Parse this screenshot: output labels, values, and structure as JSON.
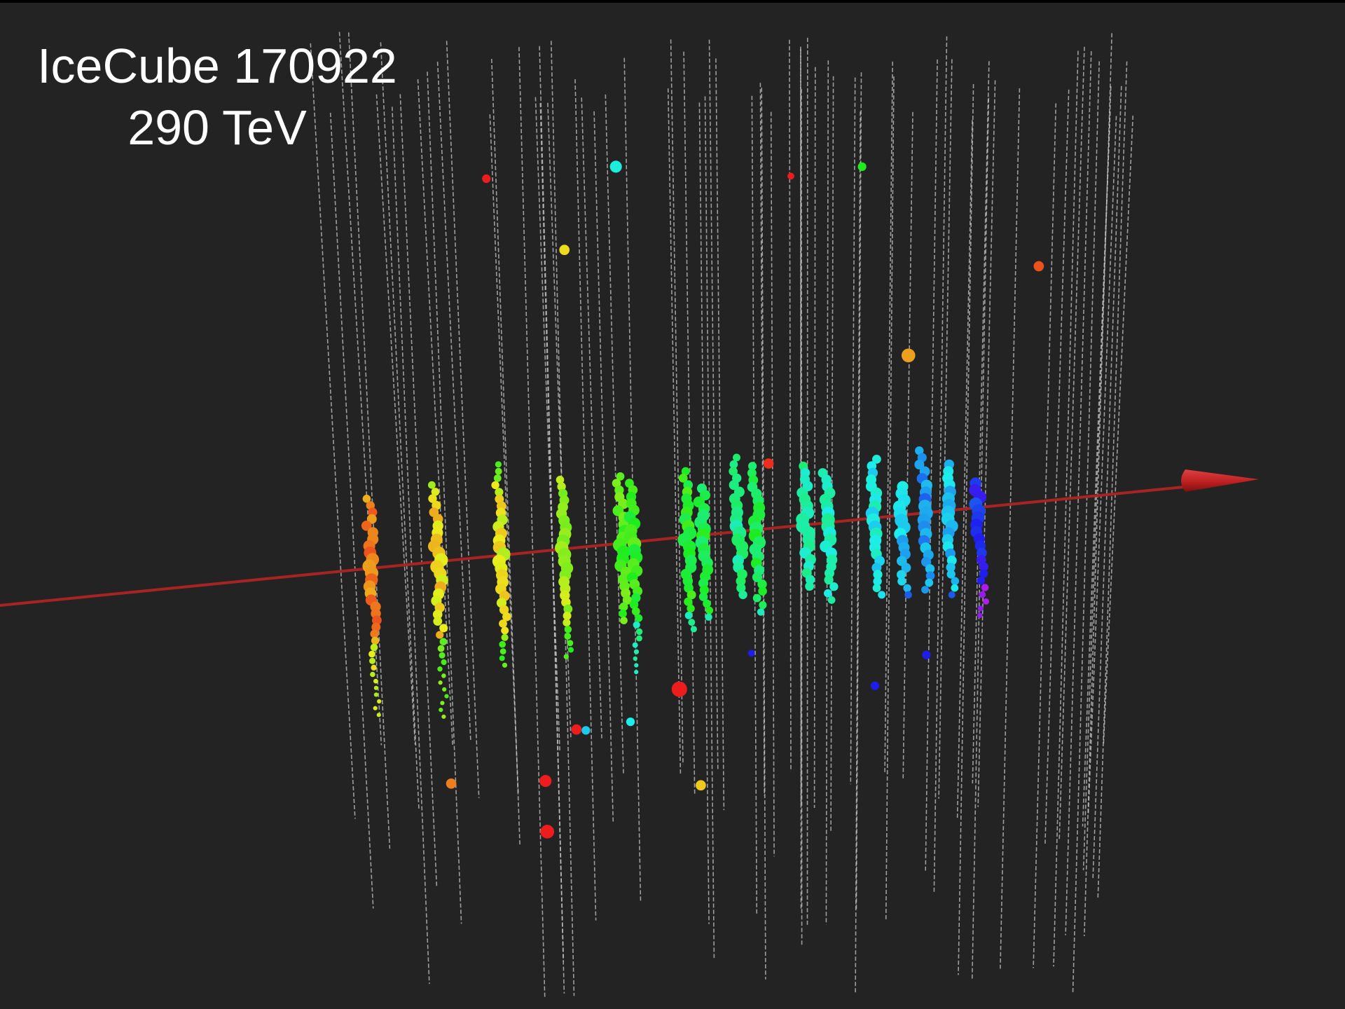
{
  "title": "IceCube 170922",
  "subtitle": "290 TeV"
}
